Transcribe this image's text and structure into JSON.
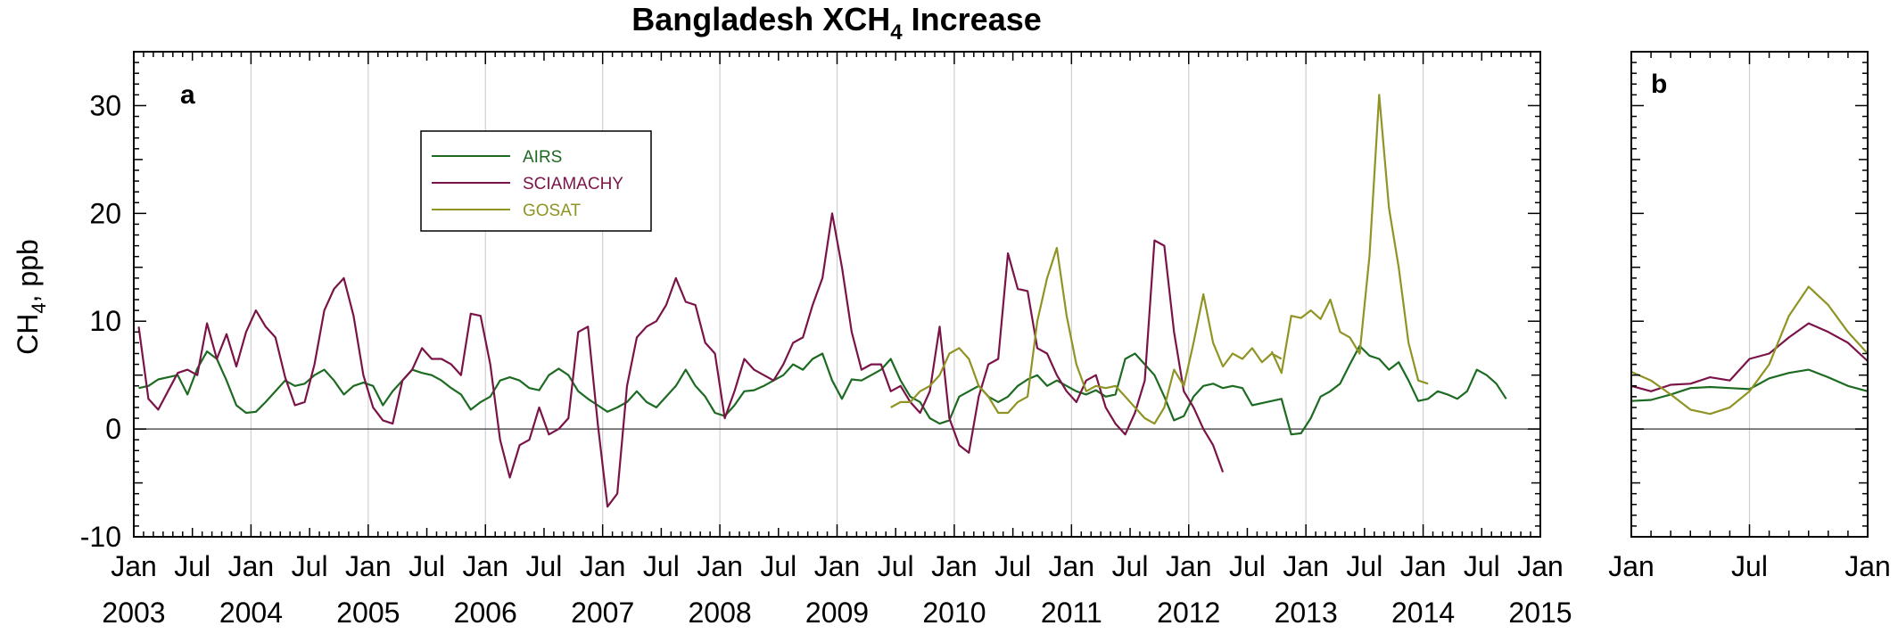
{
  "chart_data": {
    "type": "line",
    "title": "Bangladesh XCH",
    "title_sub": "4",
    "title_suffix": " Increase",
    "ylabel_main": "CH",
    "ylabel_sub": "4",
    "ylabel_suffix": ", ppb",
    "ylim": [
      -10,
      35
    ],
    "yticks": [
      -10,
      0,
      10,
      20,
      30
    ],
    "grid": true,
    "legend_position": "top-left",
    "colors": {
      "AIRS": "#1d6b22",
      "SCIAMACHY": "#7a1448",
      "GOSAT": "#8f9424",
      "zero_line": "#555555",
      "grid": "#cfcfcf"
    },
    "panels": [
      {
        "label": "a",
        "x_start": "2003-01",
        "x_end": "2015-01",
        "tick_month_labels": [
          "Jan",
          "Jul",
          "Jan",
          "Jul",
          "Jan",
          "Jul",
          "Jan",
          "Jul",
          "Jan",
          "Jul",
          "Jan",
          "Jul",
          "Jan",
          "Jul",
          "Jan",
          "Jul",
          "Jan",
          "Jul",
          "Jan",
          "Jul",
          "Jan",
          "Jul",
          "Jan",
          "Jul",
          "Jan"
        ],
        "tick_year_labels": [
          "2003",
          "2004",
          "2005",
          "2006",
          "2007",
          "2008",
          "2009",
          "2010",
          "2011",
          "2012",
          "2013",
          "2014",
          "2015"
        ],
        "series": [
          {
            "name": "AIRS",
            "start": "2003-01",
            "values": [
              3.8,
              4.0,
              4.6,
              4.8,
              5.0,
              3.2,
              5.6,
              7.2,
              6.5,
              4.5,
              2.2,
              1.5,
              1.6,
              2.5,
              3.5,
              4.5,
              4.0,
              4.2,
              5.0,
              5.5,
              4.5,
              3.2,
              4.0,
              4.3,
              4.0,
              2.2,
              3.5,
              4.5,
              5.5,
              5.2,
              5.0,
              4.5,
              3.8,
              3.2,
              1.8,
              2.5,
              3.0,
              4.5,
              4.8,
              4.5,
              3.8,
              3.6,
              5.0,
              5.6,
              5.0,
              3.5,
              2.8,
              2.2,
              1.6,
              2.0,
              2.5,
              3.5,
              2.5,
              2.0,
              3.0,
              4.0,
              5.5,
              4.0,
              3.0,
              1.5,
              1.2,
              2.2,
              3.5,
              3.6,
              4.0,
              4.5,
              5.0,
              6.0,
              5.5,
              6.5,
              7.0,
              4.5,
              2.8,
              4.6,
              4.5,
              5.0,
              5.5,
              6.5,
              4.5,
              3.0,
              2.5,
              1.0,
              0.5,
              0.8,
              3.0,
              3.5,
              4.0,
              3.0,
              2.5,
              3.0,
              4.0,
              4.6,
              5.0,
              4.0,
              4.5,
              4.0,
              3.5,
              3.2,
              3.6,
              3.0,
              3.2,
              6.5,
              7.0,
              6.0,
              5.0,
              3.0,
              0.8,
              1.2,
              3.0,
              4.0,
              4.2,
              3.8,
              4.0,
              3.8,
              2.2,
              2.4,
              2.6,
              2.8,
              -0.5,
              -0.4,
              1.0,
              3.0,
              3.5,
              4.2,
              6.0,
              7.7,
              6.8,
              6.5,
              5.5,
              6.2,
              4.5,
              2.6,
              2.8,
              3.5,
              3.2,
              2.8,
              3.5,
              5.5,
              5.0,
              4.2,
              2.8
            ]
          },
          {
            "name": "SCIAMACHY",
            "start": "2003-01",
            "values": [
              9.5,
              2.8,
              1.8,
              3.5,
              5.2,
              5.5,
              5.0,
              9.8,
              6.5,
              8.8,
              5.8,
              9.0,
              11.0,
              9.5,
              8.5,
              4.8,
              2.2,
              2.5,
              6.0,
              11.0,
              13.0,
              14.0,
              10.5,
              5.0,
              2.0,
              0.8,
              0.5,
              4.5,
              5.5,
              7.5,
              6.5,
              6.5,
              6.0,
              5.0,
              10.7,
              10.5,
              6.0,
              -1.0,
              -4.5,
              -1.5,
              -1.0,
              2.0,
              -0.5,
              0.0,
              1.0,
              9.0,
              9.5,
              0.5,
              -7.2,
              -6.0,
              4.0,
              8.5,
              9.5,
              10.0,
              11.5,
              14.0,
              11.8,
              11.5,
              8.0,
              7.0,
              1.0,
              3.5,
              6.5,
              5.5,
              5.0,
              4.5,
              6.0,
              8.0,
              8.5,
              11.5,
              14.0,
              20.0,
              15.0,
              9.0,
              5.5,
              6.0,
              6.0,
              3.5,
              4.0,
              2.5,
              1.5,
              3.5,
              9.5,
              1.0,
              -1.5,
              -2.2,
              3.0,
              6.0,
              6.5,
              16.3,
              13.0,
              12.8,
              7.5,
              7.0,
              5.0,
              3.5,
              2.5,
              4.5,
              5.0,
              2.0,
              0.5,
              -0.5,
              1.5,
              4.5,
              17.5,
              17.0,
              9.0,
              3.5,
              2.0,
              0.0,
              -1.5,
              -4.0
            ]
          },
          {
            "name": "GOSAT",
            "start": "2009-06",
            "values": [
              2.0,
              2.5,
              2.5,
              3.5,
              4.0,
              5.0,
              7.0,
              7.5,
              6.5,
              4.0,
              3.0,
              1.5,
              1.5,
              2.5,
              3.0,
              10.0,
              14.0,
              16.8,
              10.5,
              6.0,
              3.5,
              4.0,
              3.8,
              4.0,
              3.0,
              2.0,
              1.0,
              0.5,
              2.0,
              5.5,
              4.0,
              8.0,
              12.5,
              8.0,
              5.8,
              7.0,
              6.5,
              7.5,
              6.2,
              7.0,
              6.5
            ]
          },
          {
            "name": "GOSAT",
            "start": "2012-09",
            "values": [
              7.2,
              5.2,
              10.5,
              10.3,
              11.0,
              10.2,
              12.0,
              9.0,
              8.5,
              7.0,
              16.0,
              31.0,
              20.5,
              15.0,
              8.0,
              4.5,
              4.2
            ]
          }
        ]
      },
      {
        "label": "b",
        "x_start": "month 1",
        "x_end": "month 13",
        "tick_month_labels": [
          "Jan",
          "Jul",
          "Jan"
        ],
        "series": [
          {
            "name": "AIRS",
            "start_month": 1,
            "values": [
              2.6,
              2.7,
              3.2,
              3.8,
              3.9,
              3.8,
              3.7,
              4.7,
              5.2,
              5.5,
              4.8,
              4.0,
              3.5
            ]
          },
          {
            "name": "SCIAMACHY",
            "start_month": 1,
            "values": [
              4.0,
              3.5,
              4.1,
              4.2,
              4.8,
              4.5,
              6.5,
              7.0,
              8.5,
              9.8,
              9.0,
              8.0,
              6.3
            ]
          },
          {
            "name": "GOSAT",
            "start_month": 1,
            "values": [
              5.3,
              4.5,
              3.2,
              1.8,
              1.4,
              2.0,
              3.5,
              6.0,
              10.5,
              13.2,
              11.5,
              9.0,
              7.0
            ]
          }
        ]
      }
    ],
    "legend": [
      {
        "name": "AIRS"
      },
      {
        "name": "SCIAMACHY"
      },
      {
        "name": "GOSAT"
      }
    ]
  }
}
